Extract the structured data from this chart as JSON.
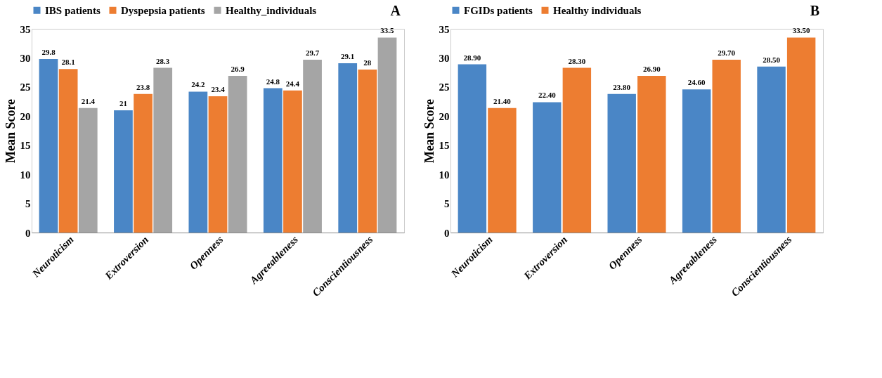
{
  "chart_data": [
    {
      "type": "bar",
      "ylabel": "Mean Score",
      "categories": [
        "Neuroticism",
        "Extroversion",
        "Openness",
        "Agreeableness",
        "Conscientiousness"
      ],
      "series": [
        {
          "name": "IBS patients",
          "color": "#4a86c6",
          "values": [
            29.8,
            21,
            24.2,
            24.8,
            29.1
          ]
        },
        {
          "name": "Dyspepsia patients",
          "color": "#ed7d31",
          "values": [
            28.1,
            23.8,
            23.4,
            24.4,
            28
          ]
        },
        {
          "name": "Healthy_individuals",
          "color": "#a5a5a5",
          "values": [
            21.4,
            28.3,
            26.9,
            29.7,
            33.5
          ]
        }
      ],
      "ylim": [
        0,
        35
      ],
      "yticks": [
        0,
        5,
        10,
        15,
        20,
        25,
        30,
        35
      ],
      "grid": false,
      "legend": "top",
      "data_labels": true,
      "annotations": [
        "A"
      ]
    },
    {
      "type": "bar",
      "ylabel": "Mean Score",
      "categories": [
        "Neuroticism",
        "Extroversion",
        "Openness",
        "Agreeableness",
        "Conscientiousness"
      ],
      "series": [
        {
          "name": "FGIDs patients",
          "color": "#4a86c6",
          "values": [
            28.9,
            22.4,
            23.8,
            24.6,
            28.5
          ],
          "value_labels": [
            "28.90",
            "22.40",
            "23.80",
            "24.60",
            "28.50"
          ]
        },
        {
          "name": "Healthy individuals",
          "color": "#ed7d31",
          "values": [
            21.4,
            28.3,
            26.9,
            29.7,
            33.5
          ],
          "value_labels": [
            "21.40",
            "28.30",
            "26.90",
            "29.70",
            "33.50"
          ]
        }
      ],
      "ylim": [
        0,
        35
      ],
      "yticks": [
        0,
        5,
        10,
        15,
        20,
        25,
        30,
        35
      ],
      "grid": false,
      "legend": "top",
      "annotations": [
        "B"
      ]
    }
  ]
}
